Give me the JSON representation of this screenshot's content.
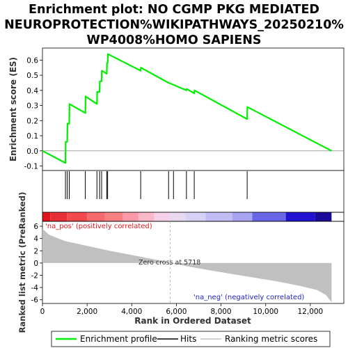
{
  "chart_data": {
    "type": "line",
    "title_lines": [
      "Enrichment plot: NO CGMP PKG MEDIATED",
      "NEUROPROTECTION%WIKIPATHWAYS_20250210%",
      "WP4008%HOMO SAPIENS"
    ],
    "xlabel": "Rank in Ordered Dataset",
    "xlim": [
      0,
      13500
    ],
    "x_ticks": [
      0,
      2000,
      4000,
      6000,
      8000,
      10000,
      12000
    ],
    "x_tick_labels": [
      "0",
      "2,000",
      "4,000",
      "6,000",
      "8,000",
      "10,000",
      "12,000"
    ],
    "top_panel": {
      "ylabel": "Enrichment score (ES)",
      "ylim": [
        -0.13,
        0.68
      ],
      "y_ticks": [
        -0.1,
        0.0,
        0.1,
        0.2,
        0.3,
        0.4,
        0.5,
        0.6
      ],
      "y_tick_labels": [
        "-0.1",
        "0.0",
        "0.1",
        "0.2",
        "0.3",
        "0.4",
        "0.5",
        "0.6"
      ],
      "series": [
        {
          "name": "Enrichment profile",
          "color": "#00ee00",
          "x": [
            0,
            1030,
            1040,
            1110,
            1120,
            1200,
            1210,
            1920,
            1930,
            2440,
            2450,
            2560,
            2570,
            2650,
            2660,
            2880,
            2890,
            2920,
            2930,
            4400,
            4410,
            5650,
            5660,
            6450,
            6460,
            6800,
            6810,
            9170,
            9180,
            12950
          ],
          "y": [
            0.0,
            -0.08,
            0.06,
            0.06,
            0.18,
            0.18,
            0.31,
            0.25,
            0.36,
            0.31,
            0.39,
            0.39,
            0.46,
            0.46,
            0.53,
            0.51,
            0.58,
            0.58,
            0.64,
            0.53,
            0.55,
            0.45,
            0.45,
            0.4,
            0.41,
            0.38,
            0.4,
            0.21,
            0.29,
            0.0
          ]
        }
      ],
      "hits": [
        1030,
        1110,
        1200,
        1920,
        2440,
        2560,
        2650,
        2880,
        2920,
        4400,
        5650,
        5870,
        6450,
        6800,
        9170
      ]
    },
    "middle_panel": {
      "type": "heatmap",
      "description_colors": [
        "#e0151d",
        "#f24a4c",
        "#f88080",
        "#fbb8c8",
        "#e8d8f0",
        "#d6d2f6",
        "#a8a4f2",
        "#6a66e8",
        "#2212d2",
        "#1a0a9a"
      ],
      "segment_ends": [
        350,
        1100,
        2000,
        2800,
        3600,
        4300,
        5000,
        5700,
        6400,
        7300,
        8500,
        9400,
        10900,
        12200,
        12950
      ]
    },
    "bottom_panel": {
      "ylabel": "Ranked list metric (PreRanked)",
      "ylim": [
        -6.6,
        6.8
      ],
      "y_ticks": [
        -6,
        -4,
        -2,
        0,
        2,
        4,
        6
      ],
      "y_tick_labels": [
        "-6",
        "-4",
        "-2",
        "0",
        "2",
        "4",
        "6"
      ],
      "metric_x": [
        0,
        300,
        1000,
        2000,
        3000,
        4000,
        5000,
        5718,
        6500,
        7500,
        8500,
        9500,
        10500,
        11500,
        12300,
        12700,
        12950
      ],
      "metric_y": [
        5.6,
        4.6,
        3.6,
        2.8,
        2.0,
        1.3,
        0.6,
        0.0,
        -0.55,
        -1.2,
        -1.8,
        -2.4,
        -3.0,
        -3.7,
        -4.4,
        -5.2,
        -6.4
      ],
      "zero_cross": 5718,
      "zero_cross_label": "Zero cross at 5718",
      "pos_label": "'na_pos' (positively correlated)",
      "neg_label": "'na_neg' (negatively correlated)"
    },
    "legend": [
      {
        "label": "Enrichment profile",
        "color": "#00ee00"
      },
      {
        "label": "Hits",
        "color": "#000000"
      },
      {
        "label": "Ranking metric scores",
        "color": "#c0c0c0"
      }
    ]
  }
}
